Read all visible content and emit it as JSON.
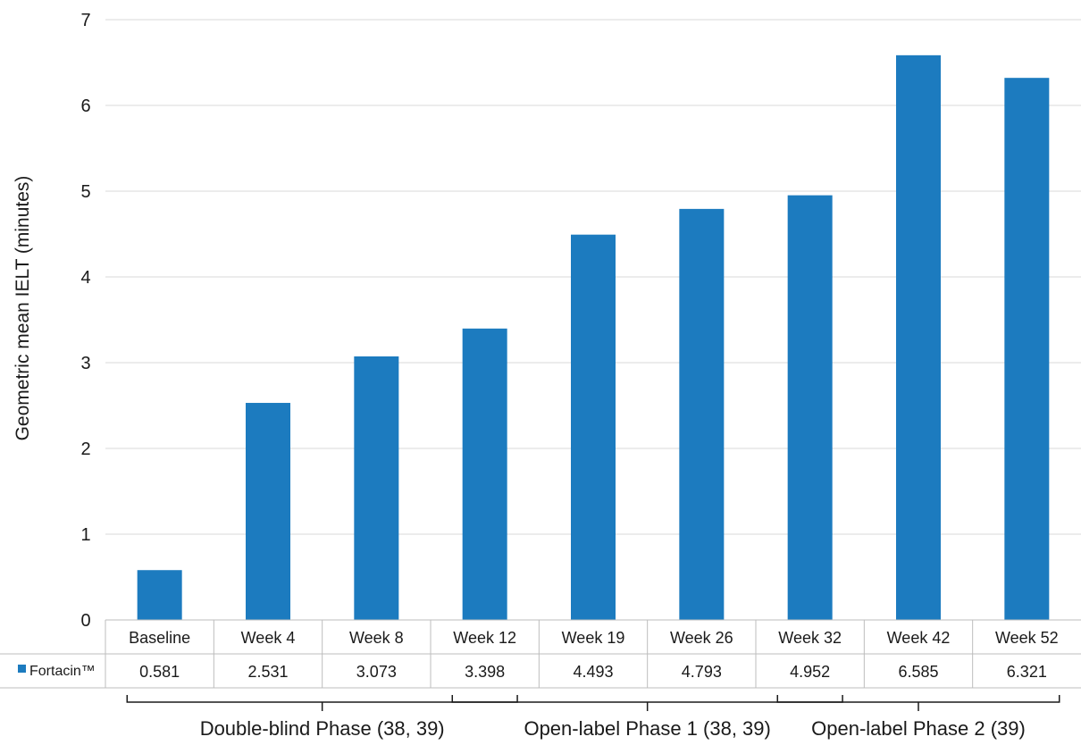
{
  "chart_data": {
    "type": "bar",
    "ylabel": "Geometric mean IELT (minutes)",
    "ylim": [
      0,
      7
    ],
    "yticks": [
      0,
      1,
      2,
      3,
      4,
      5,
      6,
      7
    ],
    "grid": true,
    "categories": [
      "Baseline",
      "Week 4",
      "Week 8",
      "Week 12",
      "Week 19",
      "Week 26",
      "Week 32",
      "Week 42",
      "Week 52"
    ],
    "series": [
      {
        "name": "Fortacin™",
        "values": [
          0.581,
          2.531,
          3.073,
          3.398,
          4.493,
          4.793,
          4.952,
          6.585,
          6.321
        ],
        "value_labels": [
          "0.581",
          "2.531",
          "3.073",
          "3.398",
          "4.493",
          "4.793",
          "4.952",
          "6.585",
          "6.321"
        ]
      }
    ],
    "phases": [
      {
        "label": "Double-blind Phase (38, 39)",
        "from": 0,
        "to": 3
      },
      {
        "label": "Open-label Phase 1 (38, 39)",
        "from": 3,
        "to": 6
      },
      {
        "label": "Open-label Phase 2 (39)",
        "from": 6,
        "to": 8
      }
    ]
  },
  "colors": {
    "bar": "#1c7bbf",
    "grid": "#d9d9d9",
    "table_border": "#bdbdbd",
    "text": "#1a1a1a"
  }
}
